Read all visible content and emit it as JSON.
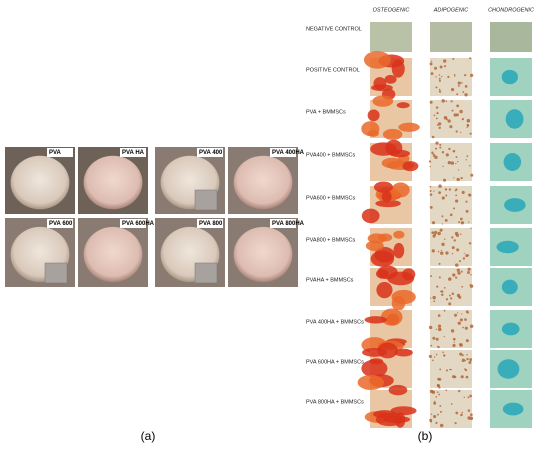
{
  "panel_a": {
    "label": "(a)",
    "samples": [
      "PVA",
      "PVA HA",
      "PVA 400",
      "PVA 400HA",
      "PVA 600",
      "PVA 600HA",
      "PVA 800",
      "PVA 800HA"
    ]
  },
  "panel_b": {
    "label": "(b)",
    "columns": [
      "OSTEOGENIC",
      "ADIPOGENIC",
      "CHONDROGENIC"
    ],
    "rows": [
      "NEGATIVE CONTROL",
      "POSITIVE CONTROL",
      "PVA + BMMSCs",
      "PVA400 + BMMSCs",
      "PVA600 + BMMSCs",
      "PVA800 + BMMSCs",
      "PVAHA + BMMSCs",
      "PVA 400HA + BMMSCs",
      "PVA 600HA + BMMSCs",
      "PVA 800HA + BMMSCs"
    ]
  }
}
